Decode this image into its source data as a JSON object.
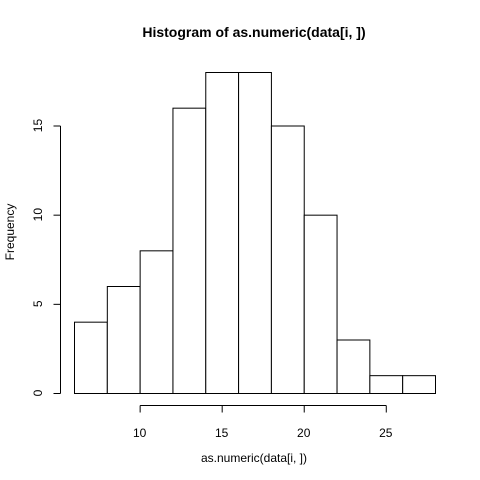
{
  "chart_data": {
    "type": "bar",
    "title": "Histogram of as.numeric(data[i, ])",
    "xlabel": "as.numeric(data[i, ])",
    "ylabel": "Frequency",
    "bins": [
      {
        "start": 6,
        "end": 8,
        "count": 4
      },
      {
        "start": 8,
        "end": 10,
        "count": 6
      },
      {
        "start": 10,
        "end": 12,
        "count": 8
      },
      {
        "start": 12,
        "end": 14,
        "count": 16
      },
      {
        "start": 14,
        "end": 16,
        "count": 18
      },
      {
        "start": 16,
        "end": 18,
        "count": 18
      },
      {
        "start": 18,
        "end": 20,
        "count": 15
      },
      {
        "start": 20,
        "end": 22,
        "count": 10
      },
      {
        "start": 22,
        "end": 24,
        "count": 3
      },
      {
        "start": 24,
        "end": 26,
        "count": 1
      },
      {
        "start": 26,
        "end": 28,
        "count": 1
      }
    ],
    "xlim": [
      6,
      28
    ],
    "ylim": [
      0,
      18
    ],
    "xticks": [
      10,
      15,
      20,
      25
    ],
    "yticks": [
      0,
      5,
      10,
      15
    ],
    "grid": false,
    "colors": {
      "bar_fill": "#ffffff",
      "bar_stroke": "#000000"
    }
  }
}
